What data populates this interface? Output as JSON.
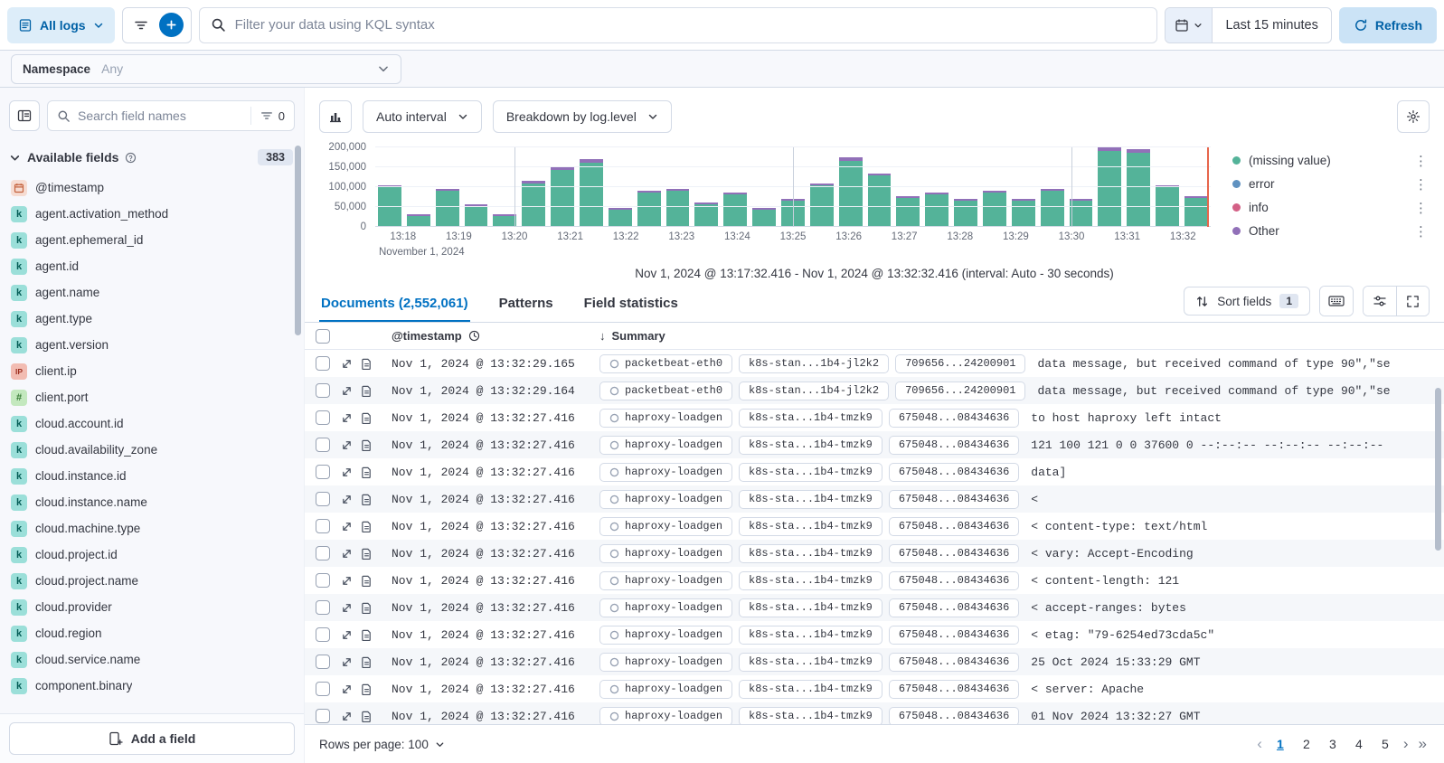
{
  "topbar": {
    "logs_menu_label": "All logs",
    "kql_placeholder": "Filter your data using KQL syntax",
    "time_range_label": "Last 15 minutes",
    "refresh_label": "Refresh"
  },
  "namespace_bar": {
    "label": "Namespace",
    "value": "Any"
  },
  "sidebar": {
    "search_placeholder": "Search field names",
    "search_filter_count": "0",
    "available_fields_label": "Available fields",
    "available_fields_count": "383",
    "add_field_label": "Add a field",
    "fields": [
      {
        "name": "@timestamp",
        "type": "date"
      },
      {
        "name": "agent.activation_method",
        "type": "keyword"
      },
      {
        "name": "agent.ephemeral_id",
        "type": "keyword"
      },
      {
        "name": "agent.id",
        "type": "keyword"
      },
      {
        "name": "agent.name",
        "type": "keyword"
      },
      {
        "name": "agent.type",
        "type": "keyword"
      },
      {
        "name": "agent.version",
        "type": "keyword"
      },
      {
        "name": "client.ip",
        "type": "ip"
      },
      {
        "name": "client.port",
        "type": "number"
      },
      {
        "name": "cloud.account.id",
        "type": "keyword"
      },
      {
        "name": "cloud.availability_zone",
        "type": "keyword"
      },
      {
        "name": "cloud.instance.id",
        "type": "keyword"
      },
      {
        "name": "cloud.instance.name",
        "type": "keyword"
      },
      {
        "name": "cloud.machine.type",
        "type": "keyword"
      },
      {
        "name": "cloud.project.id",
        "type": "keyword"
      },
      {
        "name": "cloud.project.name",
        "type": "keyword"
      },
      {
        "name": "cloud.provider",
        "type": "keyword"
      },
      {
        "name": "cloud.region",
        "type": "keyword"
      },
      {
        "name": "cloud.service.name",
        "type": "keyword"
      },
      {
        "name": "component.binary",
        "type": "keyword"
      }
    ]
  },
  "histogram": {
    "interval_button": "Auto interval",
    "breakdown_button": "Breakdown by log.level",
    "caption": "Nov 1, 2024 @ 13:17:32.416 - Nov 1, 2024 @ 13:32:32.416 (interval: Auto - 30 seconds)"
  },
  "chart_data": {
    "type": "bar",
    "stacked": true,
    "title": "",
    "xlabel": "November 1, 2024",
    "ylabel": "",
    "ylim": [
      0,
      200000
    ],
    "y_tick_labels": [
      "0",
      "50,000",
      "100,000",
      "150,000",
      "200,000"
    ],
    "x_tick_labels": [
      "13:18",
      "13:19",
      "13:20",
      "13:21",
      "13:22",
      "13:23",
      "13:24",
      "13:25",
      "13:26",
      "13:27",
      "13:28",
      "13:29",
      "13:30",
      "13:31",
      "13:32"
    ],
    "legend_position": "right",
    "series": [
      {
        "name": "(missing value)",
        "color": "#54B399",
        "values": [
          100000,
          28000,
          91000,
          52000,
          28000,
          110000,
          143000,
          162000,
          43000,
          86000,
          91000,
          57000,
          81000,
          43000,
          67000,
          105000,
          167000,
          129000,
          72000,
          81000,
          67000,
          86000,
          67000,
          91000,
          67000,
          191000,
          186000,
          100000,
          72000
        ]
      },
      {
        "name": "Other",
        "color": "#9170B8",
        "values": [
          5000,
          2000,
          4000,
          3000,
          2000,
          5000,
          7000,
          8000,
          2000,
          4000,
          4000,
          3000,
          4000,
          2000,
          3000,
          5000,
          8000,
          6000,
          3000,
          4000,
          3000,
          4000,
          3000,
          4000,
          3000,
          9000,
          9000,
          5000,
          3000
        ]
      }
    ],
    "legend": [
      {
        "label": "(missing value)",
        "color": "#54B399"
      },
      {
        "label": "error",
        "color": "#6092C0"
      },
      {
        "label": "info",
        "color": "#D36086"
      },
      {
        "label": "Other",
        "color": "#9170B8"
      }
    ],
    "vline_pcts": [
      16.7,
      50,
      83.3
    ],
    "now_line_pct": 99.6
  },
  "tabs": {
    "documents_label": "Documents (2,552,061)",
    "patterns_label": "Patterns",
    "field_statistics_label": "Field statistics",
    "sort_fields_label": "Sort fields",
    "sort_fields_count": "1"
  },
  "grid": {
    "timestamp_header": "@timestamp",
    "summary_header": "Summary",
    "rows": [
      {
        "timestamp": "Nov 1, 2024 @ 13:32:29.165",
        "service": "packetbeat-eth0",
        "pod": "k8s-stan...1b4-jl2k2",
        "trace": "709656...24200901",
        "message": "data message, but received command of type 90\",\"se"
      },
      {
        "timestamp": "Nov 1, 2024 @ 13:32:29.164",
        "service": "packetbeat-eth0",
        "pod": "k8s-stan...1b4-jl2k2",
        "trace": "709656...24200901",
        "message": "data message, but received command of type 90\",\"se"
      },
      {
        "timestamp": "Nov 1, 2024 @ 13:32:27.416",
        "service": "haproxy-loadgen",
        "pod": "k8s-sta...1b4-tmzk9",
        "trace": "675048...08434636",
        "message": "to host haproxy left intact"
      },
      {
        "timestamp": "Nov 1, 2024 @ 13:32:27.416",
        "service": "haproxy-loadgen",
        "pod": "k8s-sta...1b4-tmzk9",
        "trace": "675048...08434636",
        "message": "121 100 121 0 0 37600 0 --:--:-- --:--:-- --:--:--"
      },
      {
        "timestamp": "Nov 1, 2024 @ 13:32:27.416",
        "service": "haproxy-loadgen",
        "pod": "k8s-sta...1b4-tmzk9",
        "trace": "675048...08434636",
        "message": "data]"
      },
      {
        "timestamp": "Nov 1, 2024 @ 13:32:27.416",
        "service": "haproxy-loadgen",
        "pod": "k8s-sta...1b4-tmzk9",
        "trace": "675048...08434636",
        "message": "<"
      },
      {
        "timestamp": "Nov 1, 2024 @ 13:32:27.416",
        "service": "haproxy-loadgen",
        "pod": "k8s-sta...1b4-tmzk9",
        "trace": "675048...08434636",
        "message": "< content-type: text/html"
      },
      {
        "timestamp": "Nov 1, 2024 @ 13:32:27.416",
        "service": "haproxy-loadgen",
        "pod": "k8s-sta...1b4-tmzk9",
        "trace": "675048...08434636",
        "message": "< vary: Accept-Encoding"
      },
      {
        "timestamp": "Nov 1, 2024 @ 13:32:27.416",
        "service": "haproxy-loadgen",
        "pod": "k8s-sta...1b4-tmzk9",
        "trace": "675048...08434636",
        "message": "< content-length: 121"
      },
      {
        "timestamp": "Nov 1, 2024 @ 13:32:27.416",
        "service": "haproxy-loadgen",
        "pod": "k8s-sta...1b4-tmzk9",
        "trace": "675048...08434636",
        "message": "< accept-ranges: bytes"
      },
      {
        "timestamp": "Nov 1, 2024 @ 13:32:27.416",
        "service": "haproxy-loadgen",
        "pod": "k8s-sta...1b4-tmzk9",
        "trace": "675048...08434636",
        "message": "< etag: \"79-6254ed73cda5c\""
      },
      {
        "timestamp": "Nov 1, 2024 @ 13:32:27.416",
        "service": "haproxy-loadgen",
        "pod": "k8s-sta...1b4-tmzk9",
        "trace": "675048...08434636",
        "message": "25 Oct 2024 15:33:29 GMT"
      },
      {
        "timestamp": "Nov 1, 2024 @ 13:32:27.416",
        "service": "haproxy-loadgen",
        "pod": "k8s-sta...1b4-tmzk9",
        "trace": "675048...08434636",
        "message": "< server: Apache"
      },
      {
        "timestamp": "Nov 1, 2024 @ 13:32:27.416",
        "service": "haproxy-loadgen",
        "pod": "k8s-sta...1b4-tmzk9",
        "trace": "675048...08434636",
        "message": "01 Nov 2024 13:32:27 GMT"
      }
    ]
  },
  "footer": {
    "rows_per_page_label": "Rows per page: 100",
    "pages": [
      "1",
      "2",
      "3",
      "4",
      "5"
    ],
    "active_page": "1"
  }
}
